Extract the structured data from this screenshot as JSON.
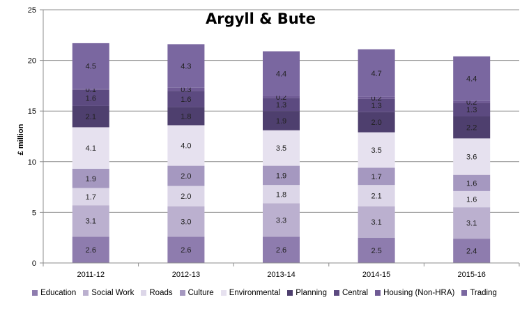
{
  "chart_data": {
    "type": "bar",
    "stacked": true,
    "title": "Argyll & Bute",
    "ylabel": "£ million",
    "xlabel": "",
    "ylim": [
      0,
      25
    ],
    "yticks": [
      "0",
      "5",
      "10",
      "15",
      "20",
      "25"
    ],
    "grid": true,
    "legend_position": "bottom",
    "categories": [
      "2011-12",
      "2012-13",
      "2013-14",
      "2014-15",
      "2015-16"
    ],
    "series": [
      {
        "name": "Education",
        "color": "#8e7cae",
        "values": [
          2.6,
          2.6,
          2.6,
          2.5,
          2.4
        ],
        "labels": [
          "2.6",
          "2.6",
          "2.6",
          "2.5",
          "2.4"
        ]
      },
      {
        "name": "Social Work",
        "color": "#bbb0cf",
        "values": [
          3.1,
          3.0,
          3.3,
          3.1,
          3.1
        ],
        "labels": [
          "3.1",
          "3.0",
          "3.3",
          "3.1",
          "3.1"
        ]
      },
      {
        "name": "Roads",
        "color": "#dcd6e8",
        "values": [
          1.7,
          2.0,
          1.8,
          2.1,
          1.6
        ],
        "labels": [
          "1.7",
          "2.0",
          "1.8",
          "2.1",
          "1.6"
        ]
      },
      {
        "name": "Culture",
        "color": "#a598c0",
        "values": [
          1.9,
          2.0,
          1.9,
          1.7,
          1.6
        ],
        "labels": [
          "1.9",
          "2.0",
          "1.9",
          "1.7",
          "1.6"
        ]
      },
      {
        "name": "Environmental",
        "color": "#e6e1ef",
        "values": [
          4.1,
          4.0,
          3.5,
          3.5,
          3.6
        ],
        "labels": [
          "4.1",
          "4.0",
          "3.5",
          "3.5",
          "3.6"
        ]
      },
      {
        "name": "Planning",
        "color": "#4e3f6e",
        "values": [
          2.1,
          1.8,
          1.9,
          2.0,
          2.2
        ],
        "labels": [
          "2.1",
          "1.8",
          "1.9",
          "2.0",
          "2.2"
        ]
      },
      {
        "name": "Central",
        "color": "#5c4a80",
        "values": [
          1.6,
          1.6,
          1.3,
          1.3,
          1.3
        ],
        "labels": [
          "1.6",
          "1.6",
          "1.3",
          "1.3",
          "1.3"
        ]
      },
      {
        "name": "Housing (Non-HRA)",
        "color": "#6f5a94",
        "values": [
          0.1,
          0.3,
          0.2,
          0.2,
          0.2
        ],
        "labels": [
          "0.1",
          "0.3",
          "0.2",
          "0.2",
          "0.2"
        ]
      },
      {
        "name": "Trading",
        "color": "#7a67a0",
        "values": [
          4.5,
          4.3,
          4.4,
          4.7,
          4.4
        ],
        "labels": [
          "4.5",
          "4.3",
          "4.4",
          "4.7",
          "4.4"
        ]
      }
    ]
  }
}
